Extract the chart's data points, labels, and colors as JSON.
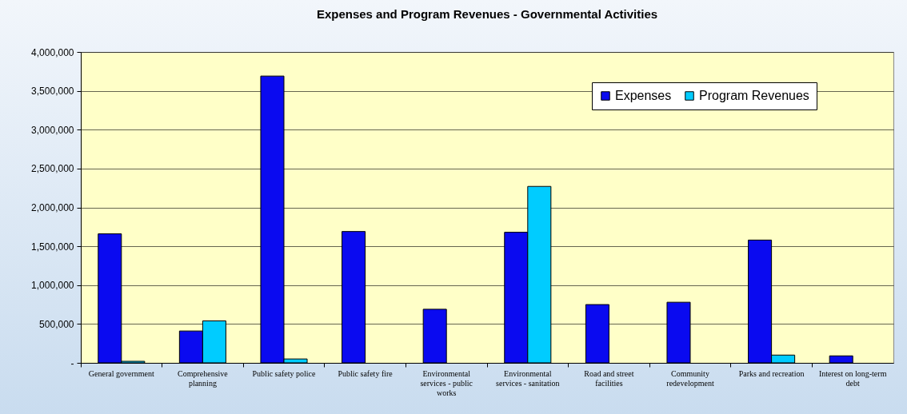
{
  "chart_data": {
    "type": "bar",
    "title": "Expenses and Program  Revenues - Governmental Activities",
    "categories": [
      "General government",
      "Comprehensive planning",
      "Public safety police",
      "Public safety fire",
      "Environmental services - public works",
      "Environmental services - sanitation",
      "Road and street facilities",
      "Community redevelopment",
      "Parks and recreation",
      "Interest on long-term debt"
    ],
    "series": [
      {
        "name": "Expenses",
        "color": "#0a0af0",
        "values": [
          1660000,
          410000,
          3690000,
          1690000,
          690000,
          1680000,
          750000,
          780000,
          1580000,
          90000
        ]
      },
      {
        "name": "Program Revenues",
        "color": "#00ccff",
        "values": [
          20000,
          540000,
          50000,
          null,
          null,
          2270000,
          null,
          null,
          100000,
          null
        ]
      }
    ],
    "ylim": [
      0,
      4000000
    ],
    "yticks": [
      {
        "value": 0,
        "label": "-"
      },
      {
        "value": 500000,
        "label": "500,000"
      },
      {
        "value": 1000000,
        "label": "1,000,000"
      },
      {
        "value": 1500000,
        "label": "1,500,000"
      },
      {
        "value": 2000000,
        "label": "2,000,000"
      },
      {
        "value": 2500000,
        "label": "2,500,000"
      },
      {
        "value": 3000000,
        "label": "3,000,000"
      },
      {
        "value": 3500000,
        "label": "3,500,000"
      },
      {
        "value": 4000000,
        "label": "4,000,000"
      }
    ],
    "grid": "y",
    "legend": "top right"
  }
}
